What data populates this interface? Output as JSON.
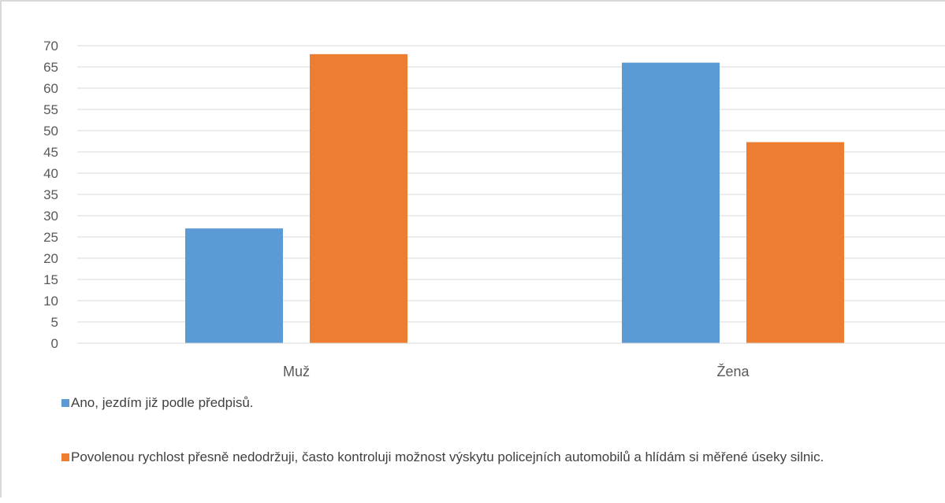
{
  "chart_data": {
    "type": "bar",
    "title": "",
    "xlabel": "",
    "ylabel": "",
    "categories": [
      "Muž",
      "Žena"
    ],
    "series": [
      {
        "name": "Ano, jezdím již podle předpisů.",
        "values": [
          27,
          66
        ],
        "color": "#5b9bd5"
      },
      {
        "name": "Povolenou rychlost přesně nedodržuji, často kontroluji možnost výskytu policejních automobilů a hlídám si měřené úseky silnic.",
        "values": [
          68,
          47.3
        ],
        "color": "#ed7d31"
      }
    ],
    "ylim": [
      0,
      70
    ],
    "yticks": [
      0,
      5,
      10,
      15,
      20,
      25,
      30,
      35,
      40,
      45,
      50,
      55,
      60,
      65,
      70
    ],
    "grid": true,
    "legend_position": "bottom-left"
  }
}
